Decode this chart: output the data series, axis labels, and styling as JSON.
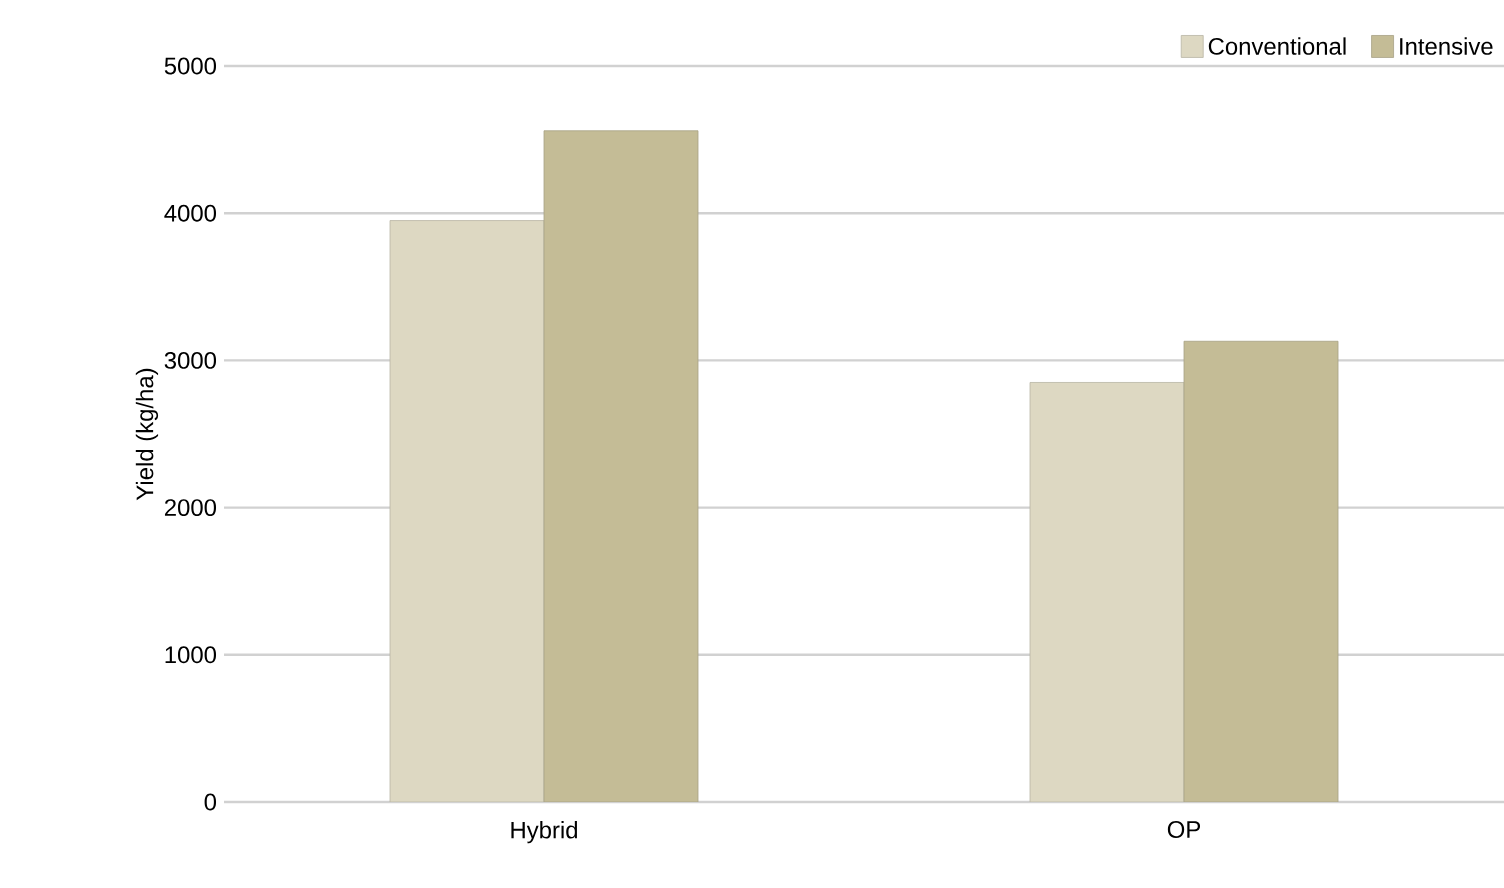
{
  "chart_data": {
    "type": "bar",
    "ylabel": "Yield (kg/ha)",
    "categories": [
      "Hybrid",
      "OP"
    ],
    "series": [
      {
        "name": "Conventional",
        "color": "#ddd8c2",
        "values": [
          3950,
          2850
        ]
      },
      {
        "name": "Intensive",
        "color": "#c4bc96",
        "values": [
          4560,
          3130
        ]
      }
    ],
    "ylim": [
      0,
      5000
    ],
    "yticks": [
      0,
      1000,
      2000,
      3000,
      4000,
      5000
    ],
    "grid": "y",
    "legend": "top right"
  }
}
